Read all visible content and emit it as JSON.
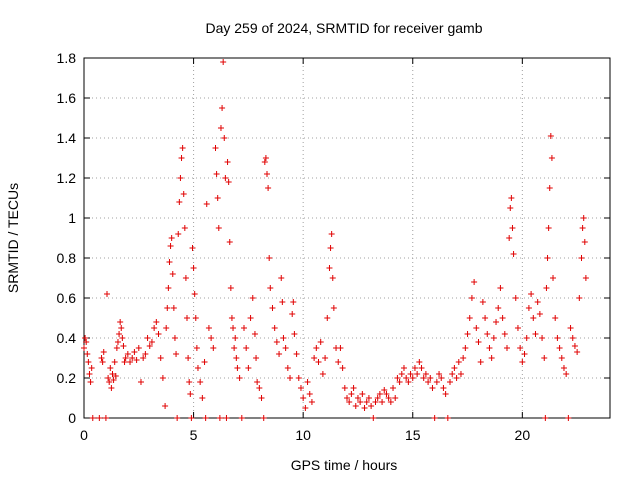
{
  "chart_data": {
    "type": "scatter",
    "title": "Day 259 of 2024, SRMTID for receiver gamb",
    "xlabel": "GPS time / hours",
    "ylabel": "SRMTID / TECUs",
    "xlim": [
      0,
      24
    ],
    "ylim": [
      0,
      1.8
    ],
    "xticks": [
      0,
      5,
      10,
      15,
      20
    ],
    "xtick_labels": [
      "0",
      "5",
      "10",
      "15",
      "20"
    ],
    "yticks": [
      0,
      0.2,
      0.4,
      0.6,
      0.8,
      1.0,
      1.2,
      1.4,
      1.6,
      1.8
    ],
    "ytick_labels": [
      "0",
      "0.2",
      "0.4",
      "0.6",
      "0.8",
      "1",
      "1.2",
      "1.4",
      "1.6",
      "1.8"
    ],
    "grid": true,
    "marker": "+",
    "color": "#e00000",
    "series": [
      {
        "name": "SRMTID",
        "points": [
          [
            0.0,
            0.35
          ],
          [
            0.05,
            0.4
          ],
          [
            0.1,
            0.38
          ],
          [
            0.15,
            0.32
          ],
          [
            0.2,
            0.28
          ],
          [
            0.25,
            0.22
          ],
          [
            0.3,
            0.18
          ],
          [
            0.35,
            0.25
          ],
          [
            0.4,
            0.0
          ],
          [
            0.7,
            0.0
          ],
          [
            0.8,
            0.3
          ],
          [
            0.85,
            0.28
          ],
          [
            0.9,
            0.33
          ],
          [
            1.0,
            0.0
          ],
          [
            1.05,
            0.62
          ],
          [
            1.1,
            0.2
          ],
          [
            1.15,
            0.18
          ],
          [
            1.2,
            0.25
          ],
          [
            1.25,
            0.15
          ],
          [
            1.3,
            0.22
          ],
          [
            1.35,
            0.19
          ],
          [
            1.4,
            0.28
          ],
          [
            1.45,
            0.21
          ],
          [
            1.5,
            0.35
          ],
          [
            1.55,
            0.38
          ],
          [
            1.6,
            0.42
          ],
          [
            1.65,
            0.48
          ],
          [
            1.7,
            0.45
          ],
          [
            1.75,
            0.4
          ],
          [
            1.8,
            0.36
          ],
          [
            1.85,
            0.28
          ],
          [
            1.9,
            0.3
          ],
          [
            2.0,
            0.32
          ],
          [
            2.1,
            0.28
          ],
          [
            2.2,
            0.3
          ],
          [
            2.3,
            0.33
          ],
          [
            2.4,
            0.29
          ],
          [
            2.5,
            0.35
          ],
          [
            2.6,
            0.18
          ],
          [
            2.7,
            0.3
          ],
          [
            2.8,
            0.32
          ],
          [
            2.9,
            0.4
          ],
          [
            3.0,
            0.36
          ],
          [
            3.1,
            0.38
          ],
          [
            3.2,
            0.45
          ],
          [
            3.3,
            0.48
          ],
          [
            3.4,
            0.42
          ],
          [
            3.5,
            0.3
          ],
          [
            3.6,
            0.2
          ],
          [
            3.7,
            0.06
          ],
          [
            3.75,
            0.45
          ],
          [
            3.8,
            0.55
          ],
          [
            3.85,
            0.65
          ],
          [
            3.9,
            0.78
          ],
          [
            3.95,
            0.86
          ],
          [
            4.0,
            0.9
          ],
          [
            4.05,
            0.72
          ],
          [
            4.1,
            0.55
          ],
          [
            4.15,
            0.4
          ],
          [
            4.2,
            0.32
          ],
          [
            4.25,
            0.0
          ],
          [
            4.3,
            0.92
          ],
          [
            4.35,
            1.08
          ],
          [
            4.4,
            1.2
          ],
          [
            4.45,
            1.3
          ],
          [
            4.5,
            1.35
          ],
          [
            4.55,
            1.12
          ],
          [
            4.6,
            0.95
          ],
          [
            4.65,
            0.7
          ],
          [
            4.7,
            0.5
          ],
          [
            4.75,
            0.3
          ],
          [
            4.8,
            0.18
          ],
          [
            4.85,
            0.12
          ],
          [
            4.9,
            0.0
          ],
          [
            4.95,
            0.85
          ],
          [
            5.0,
            0.75
          ],
          [
            5.05,
            0.62
          ],
          [
            5.1,
            0.5
          ],
          [
            5.15,
            0.35
          ],
          [
            5.2,
            0.25
          ],
          [
            5.3,
            0.18
          ],
          [
            5.4,
            0.1
          ],
          [
            5.5,
            0.28
          ],
          [
            5.55,
            0.0
          ],
          [
            5.6,
            1.07
          ],
          [
            5.7,
            0.45
          ],
          [
            5.8,
            0.4
          ],
          [
            5.9,
            0.35
          ],
          [
            6.0,
            1.35
          ],
          [
            6.05,
            1.22
          ],
          [
            6.1,
            1.1
          ],
          [
            6.15,
            0.95
          ],
          [
            6.2,
            0.0
          ],
          [
            6.25,
            1.45
          ],
          [
            6.3,
            1.55
          ],
          [
            6.35,
            1.78
          ],
          [
            6.4,
            1.4
          ],
          [
            6.45,
            1.2
          ],
          [
            6.5,
            0.0
          ],
          [
            6.55,
            1.28
          ],
          [
            6.6,
            1.18
          ],
          [
            6.65,
            0.88
          ],
          [
            6.7,
            0.65
          ],
          [
            6.75,
            0.5
          ],
          [
            6.8,
            0.45
          ],
          [
            6.85,
            0.35
          ],
          [
            6.9,
            0.4
          ],
          [
            6.95,
            0.3
          ],
          [
            7.0,
            0.25
          ],
          [
            7.1,
            0.2
          ],
          [
            7.2,
            0.0
          ],
          [
            7.3,
            0.45
          ],
          [
            7.4,
            0.35
          ],
          [
            7.5,
            0.25
          ],
          [
            7.6,
            0.5
          ],
          [
            7.7,
            0.6
          ],
          [
            7.8,
            0.42
          ],
          [
            7.85,
            0.3
          ],
          [
            7.9,
            0.18
          ],
          [
            8.0,
            0.15
          ],
          [
            8.1,
            0.1
          ],
          [
            8.2,
            0.0
          ],
          [
            8.25,
            1.28
          ],
          [
            8.3,
            1.3
          ],
          [
            8.35,
            1.22
          ],
          [
            8.4,
            1.15
          ],
          [
            8.45,
            0.8
          ],
          [
            8.5,
            0.65
          ],
          [
            8.6,
            0.55
          ],
          [
            8.7,
            0.45
          ],
          [
            8.8,
            0.38
          ],
          [
            8.9,
            0.32
          ],
          [
            9.0,
            0.7
          ],
          [
            9.05,
            0.58
          ],
          [
            9.1,
            0.4
          ],
          [
            9.2,
            0.35
          ],
          [
            9.3,
            0.25
          ],
          [
            9.4,
            0.2
          ],
          [
            9.5,
            0.52
          ],
          [
            9.55,
            0.58
          ],
          [
            9.6,
            0.42
          ],
          [
            9.7,
            0.32
          ],
          [
            9.8,
            0.2
          ],
          [
            9.9,
            0.15
          ],
          [
            10.0,
            0.1
          ],
          [
            10.1,
            0.05
          ],
          [
            10.2,
            0.18
          ],
          [
            10.3,
            0.12
          ],
          [
            10.4,
            0.08
          ],
          [
            10.5,
            0.3
          ],
          [
            10.6,
            0.35
          ],
          [
            10.7,
            0.28
          ],
          [
            10.8,
            0.38
          ],
          [
            10.9,
            0.22
          ],
          [
            11.0,
            0.3
          ],
          [
            11.1,
            0.5
          ],
          [
            11.2,
            0.75
          ],
          [
            11.25,
            0.85
          ],
          [
            11.3,
            0.92
          ],
          [
            11.35,
            0.7
          ],
          [
            11.4,
            0.55
          ],
          [
            11.5,
            0.35
          ],
          [
            11.6,
            0.28
          ],
          [
            11.7,
            0.35
          ],
          [
            11.8,
            0.25
          ],
          [
            11.9,
            0.15
          ],
          [
            12.0,
            0.1
          ],
          [
            12.1,
            0.08
          ],
          [
            12.2,
            0.12
          ],
          [
            12.3,
            0.15
          ],
          [
            12.4,
            0.06
          ],
          [
            12.5,
            0.1
          ],
          [
            12.6,
            0.08
          ],
          [
            12.7,
            0.12
          ],
          [
            12.8,
            0.05
          ],
          [
            12.9,
            0.08
          ],
          [
            13.0,
            0.1
          ],
          [
            13.1,
            0.06
          ],
          [
            13.2,
            0.0
          ],
          [
            13.3,
            0.08
          ],
          [
            13.4,
            0.1
          ],
          [
            13.5,
            0.12
          ],
          [
            13.6,
            0.08
          ],
          [
            13.7,
            0.14
          ],
          [
            13.8,
            0.12
          ],
          [
            13.9,
            0.1
          ],
          [
            14.0,
            0.08
          ],
          [
            14.1,
            0.15
          ],
          [
            14.2,
            0.1
          ],
          [
            14.3,
            0.2
          ],
          [
            14.4,
            0.18
          ],
          [
            14.5,
            0.22
          ],
          [
            14.6,
            0.25
          ],
          [
            14.7,
            0.2
          ],
          [
            14.8,
            0.18
          ],
          [
            14.9,
            0.22
          ],
          [
            15.0,
            0.2
          ],
          [
            15.1,
            0.25
          ],
          [
            15.2,
            0.22
          ],
          [
            15.3,
            0.28
          ],
          [
            15.4,
            0.25
          ],
          [
            15.5,
            0.2
          ],
          [
            15.6,
            0.22
          ],
          [
            15.7,
            0.18
          ],
          [
            15.8,
            0.2
          ],
          [
            15.9,
            0.15
          ],
          [
            16.0,
            0.0
          ],
          [
            16.1,
            0.18
          ],
          [
            16.2,
            0.22
          ],
          [
            16.3,
            0.2
          ],
          [
            16.4,
            0.15
          ],
          [
            16.5,
            0.12
          ],
          [
            16.6,
            0.0
          ],
          [
            16.7,
            0.18
          ],
          [
            16.8,
            0.22
          ],
          [
            16.9,
            0.25
          ],
          [
            17.0,
            0.2
          ],
          [
            17.1,
            0.28
          ],
          [
            17.2,
            0.22
          ],
          [
            17.3,
            0.3
          ],
          [
            17.4,
            0.35
          ],
          [
            17.5,
            0.42
          ],
          [
            17.6,
            0.5
          ],
          [
            17.7,
            0.6
          ],
          [
            17.8,
            0.68
          ],
          [
            17.9,
            0.45
          ],
          [
            18.0,
            0.38
          ],
          [
            18.1,
            0.28
          ],
          [
            18.2,
            0.58
          ],
          [
            18.3,
            0.5
          ],
          [
            18.4,
            0.42
          ],
          [
            18.5,
            0.35
          ],
          [
            18.6,
            0.3
          ],
          [
            18.7,
            0.4
          ],
          [
            18.8,
            0.48
          ],
          [
            18.9,
            0.55
          ],
          [
            19.0,
            0.65
          ],
          [
            19.1,
            0.5
          ],
          [
            19.2,
            0.42
          ],
          [
            19.3,
            0.35
          ],
          [
            19.4,
            0.9
          ],
          [
            19.45,
            1.05
          ],
          [
            19.5,
            1.1
          ],
          [
            19.55,
            0.95
          ],
          [
            19.6,
            0.82
          ],
          [
            19.7,
            0.6
          ],
          [
            19.8,
            0.45
          ],
          [
            19.9,
            0.35
          ],
          [
            20.0,
            0.28
          ],
          [
            20.1,
            0.32
          ],
          [
            20.2,
            0.4
          ],
          [
            20.3,
            0.55
          ],
          [
            20.4,
            0.62
          ],
          [
            20.5,
            0.5
          ],
          [
            20.6,
            0.42
          ],
          [
            20.7,
            0.58
          ],
          [
            20.8,
            0.52
          ],
          [
            20.9,
            0.4
          ],
          [
            21.0,
            0.3
          ],
          [
            21.05,
            0.0
          ],
          [
            21.1,
            0.65
          ],
          [
            21.15,
            0.8
          ],
          [
            21.2,
            0.95
          ],
          [
            21.25,
            1.15
          ],
          [
            21.3,
            1.41
          ],
          [
            21.35,
            1.3
          ],
          [
            21.4,
            0.7
          ],
          [
            21.5,
            0.5
          ],
          [
            21.6,
            0.4
          ],
          [
            21.7,
            0.35
          ],
          [
            21.8,
            0.3
          ],
          [
            21.9,
            0.25
          ],
          [
            22.0,
            0.22
          ],
          [
            22.1,
            0.0
          ],
          [
            22.2,
            0.45
          ],
          [
            22.3,
            0.4
          ],
          [
            22.4,
            0.36
          ],
          [
            22.5,
            0.33
          ],
          [
            22.6,
            0.6
          ],
          [
            22.7,
            0.8
          ],
          [
            22.75,
            0.95
          ],
          [
            22.8,
            1.0
          ],
          [
            22.85,
            0.88
          ],
          [
            22.9,
            0.7
          ]
        ]
      }
    ]
  }
}
